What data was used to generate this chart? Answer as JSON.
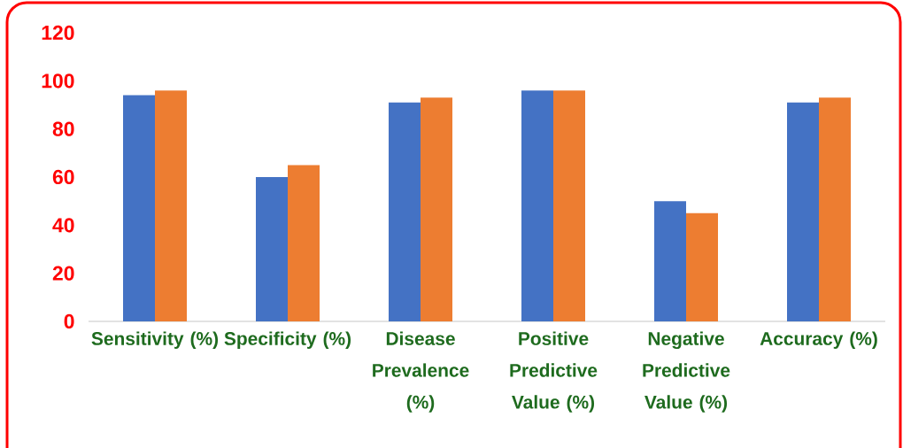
{
  "chart_data": {
    "type": "bar",
    "categories": [
      "Sensitivity (%)",
      "Specificity (%)",
      "Disease Prevalence (%)",
      "Positive Predictive Value (%)",
      "Negative Predictive Value (%)",
      "Accuracy (%)"
    ],
    "series": [
      {
        "color": "#4472c4",
        "values": [
          94,
          60,
          91,
          96,
          50,
          91
        ]
      },
      {
        "color": "#ed7d31",
        "values": [
          96,
          65,
          93,
          96,
          45,
          93
        ]
      }
    ],
    "ylim": [
      0,
      120
    ],
    "yticks": [
      0,
      20,
      40,
      60,
      80,
      100,
      120
    ],
    "grid": false,
    "legend": false
  }
}
